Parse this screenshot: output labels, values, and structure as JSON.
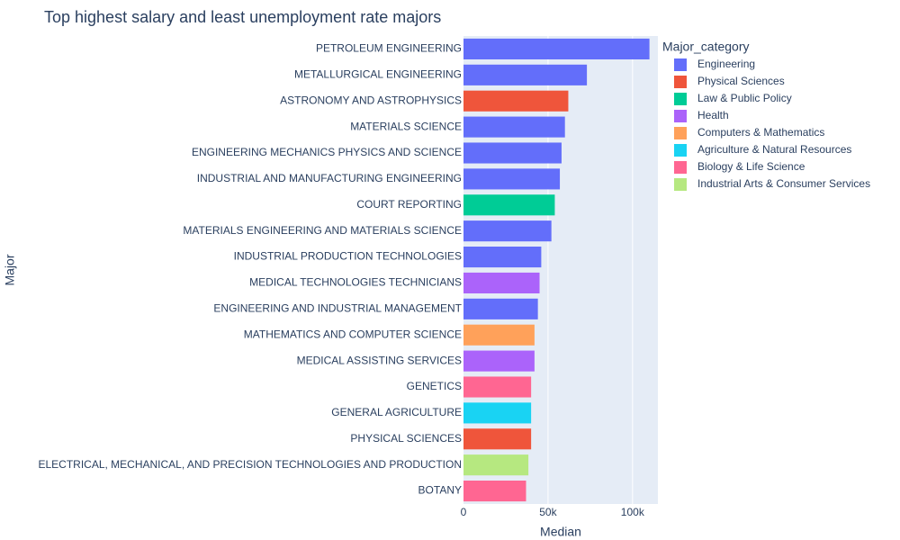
{
  "chart_data": {
    "type": "bar",
    "orientation": "horizontal",
    "title": "Top highest salary and least unemployment rate majors",
    "xlabel": "Median",
    "ylabel": "Major",
    "xlim": [
      0,
      115000
    ],
    "xticks": [
      0,
      50000,
      100000
    ],
    "xtick_labels": [
      "0",
      "50k",
      "100k"
    ],
    "grid": true,
    "plot_background": "#e5ecf6",
    "legend": {
      "title": "Major_category",
      "placement": "right",
      "entries": [
        {
          "name": "Engineering",
          "color": "#636efa"
        },
        {
          "name": "Physical Sciences",
          "color": "#ef553b"
        },
        {
          "name": "Law & Public Policy",
          "color": "#00cc96"
        },
        {
          "name": "Health",
          "color": "#ab63fa"
        },
        {
          "name": "Computers & Mathematics",
          "color": "#ffa15a"
        },
        {
          "name": "Agriculture & Natural Resources",
          "color": "#19d3f3"
        },
        {
          "name": "Biology & Life Science",
          "color": "#ff6692"
        },
        {
          "name": "Industrial Arts & Consumer Services",
          "color": "#b6e880"
        }
      ]
    },
    "bars": [
      {
        "label": "PETROLEUM ENGINEERING",
        "value": 110000,
        "category": "Engineering"
      },
      {
        "label": "METALLURGICAL ENGINEERING",
        "value": 73000,
        "category": "Engineering"
      },
      {
        "label": "ASTRONOMY AND ASTROPHYSICS",
        "value": 62000,
        "category": "Physical Sciences"
      },
      {
        "label": "MATERIALS SCIENCE",
        "value": 60000,
        "category": "Engineering"
      },
      {
        "label": "ENGINEERING MECHANICS PHYSICS AND SCIENCE",
        "value": 58000,
        "category": "Engineering"
      },
      {
        "label": "INDUSTRIAL AND MANUFACTURING ENGINEERING",
        "value": 57000,
        "category": "Engineering"
      },
      {
        "label": "COURT REPORTING",
        "value": 54000,
        "category": "Law & Public Policy"
      },
      {
        "label": "MATERIALS ENGINEERING AND MATERIALS SCIENCE",
        "value": 52000,
        "category": "Engineering"
      },
      {
        "label": "INDUSTRIAL PRODUCTION TECHNOLOGIES",
        "value": 46000,
        "category": "Engineering"
      },
      {
        "label": "MEDICAL TECHNOLOGIES TECHNICIANS",
        "value": 45000,
        "category": "Health"
      },
      {
        "label": "ENGINEERING AND INDUSTRIAL MANAGEMENT",
        "value": 44000,
        "category": "Engineering"
      },
      {
        "label": "MATHEMATICS AND COMPUTER SCIENCE",
        "value": 42000,
        "category": "Computers & Mathematics"
      },
      {
        "label": "MEDICAL ASSISTING SERVICES",
        "value": 42000,
        "category": "Health"
      },
      {
        "label": "GENETICS",
        "value": 40000,
        "category": "Biology & Life Science"
      },
      {
        "label": "GENERAL AGRICULTURE",
        "value": 40000,
        "category": "Agriculture & Natural Resources"
      },
      {
        "label": "PHYSICAL SCIENCES",
        "value": 40000,
        "category": "Physical Sciences"
      },
      {
        "label": "ELECTRICAL, MECHANICAL, AND PRECISION TECHNOLOGIES AND PRODUCTION",
        "value": 38400,
        "category": "Industrial Arts & Consumer Services"
      },
      {
        "label": "BOTANY",
        "value": 37000,
        "category": "Biology & Life Science"
      }
    ]
  }
}
